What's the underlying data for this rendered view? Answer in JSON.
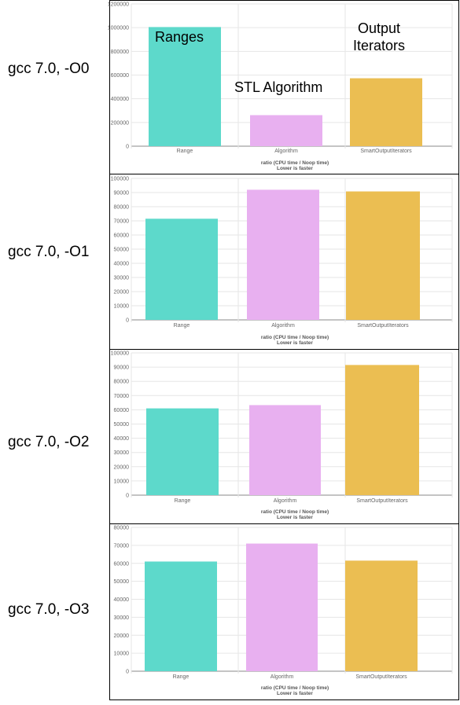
{
  "row_labels": [
    "gcc 7.0, -O0",
    "gcc 7.0, -O1",
    "gcc 7.0, -O2",
    "gcc 7.0, -O3"
  ],
  "colors": {
    "Range": "#5dd9cb",
    "Algorithm": "#e8b0f0",
    "SmartOutputIterators": "#ebbe52",
    "grid": "#e6e6e6",
    "axis": "#888888"
  },
  "chart_data": [
    {
      "type": "bar",
      "categories": [
        "Range",
        "Algorithm",
        "SmartOutputIterators"
      ],
      "values": [
        1005000,
        262000,
        573000
      ],
      "ylim": [
        0,
        1200000
      ],
      "yticks": [
        0,
        200000,
        400000,
        600000,
        800000,
        1000000,
        1200000
      ],
      "xlabel": "ratio (CPU time / Noop time)",
      "xlabel2": "Lower is faster",
      "annotations": [
        "Ranges",
        "STL Algorithm",
        "Output",
        "Iterators"
      ],
      "grid": true
    },
    {
      "type": "bar",
      "categories": [
        "Range",
        "Algorithm",
        "SmartOutputIterators"
      ],
      "values": [
        71500,
        92000,
        90800
      ],
      "ylim": [
        0,
        100000
      ],
      "yticks": [
        0,
        10000,
        20000,
        30000,
        40000,
        50000,
        60000,
        70000,
        80000,
        90000,
        100000
      ],
      "xlabel": "ratio (CPU time / Noop time)",
      "xlabel2": "Lower is faster",
      "grid": true
    },
    {
      "type": "bar",
      "categories": [
        "Range",
        "Algorithm",
        "SmartOutputIterators"
      ],
      "values": [
        61000,
        63300,
        91500
      ],
      "ylim": [
        0,
        100000
      ],
      "yticks": [
        0,
        10000,
        20000,
        30000,
        40000,
        50000,
        60000,
        70000,
        80000,
        90000,
        100000
      ],
      "xlabel": "ratio (CPU time / Noop time)",
      "xlabel2": "Lower is faster",
      "grid": true
    },
    {
      "type": "bar",
      "categories": [
        "Range",
        "Algorithm",
        "SmartOutputIterators"
      ],
      "values": [
        61000,
        71000,
        61500
      ],
      "ylim": [
        0,
        80000
      ],
      "yticks": [
        0,
        10000,
        20000,
        30000,
        40000,
        50000,
        60000,
        70000,
        80000
      ],
      "xlabel": "ratio (CPU time / Noop time)",
      "xlabel2": "Lower is faster",
      "grid": true
    }
  ]
}
